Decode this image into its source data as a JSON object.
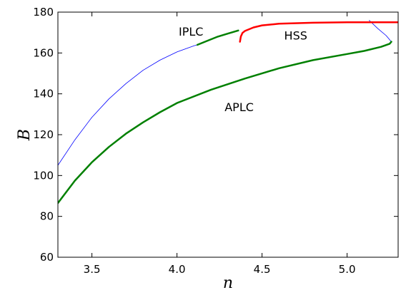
{
  "chart_data": {
    "type": "line",
    "title": "",
    "xlabel": "n",
    "ylabel": "B",
    "xlim": [
      3.3,
      5.3
    ],
    "ylim": [
      60,
      180
    ],
    "x_ticks": [
      3.5,
      4.0,
      4.5,
      5.0
    ],
    "x_tick_labels": [
      "3.5",
      "4.0",
      "4.5",
      "5.0"
    ],
    "y_ticks": [
      60,
      80,
      100,
      120,
      140,
      160,
      180
    ],
    "y_tick_labels": [
      "60",
      "80",
      "100",
      "120",
      "140",
      "160",
      "180"
    ],
    "grid": false,
    "series": [
      {
        "id": "blue-branch",
        "color": "#0000ff",
        "width": 0.8,
        "points": [
          [
            3.3,
            105
          ],
          [
            3.4,
            117.5
          ],
          [
            3.5,
            128.5
          ],
          [
            3.6,
            137.5
          ],
          [
            3.7,
            145
          ],
          [
            3.8,
            151.5
          ],
          [
            3.9,
            156.5
          ],
          [
            4.0,
            160.5
          ],
          [
            4.1,
            163.5
          ],
          [
            4.12,
            164
          ]
        ]
      },
      {
        "id": "blue-segment-right",
        "color": "#0000ff",
        "width": 0.8,
        "points": [
          [
            5.13,
            176
          ],
          [
            5.18,
            172
          ],
          [
            5.23,
            168.5
          ],
          [
            5.26,
            165.5
          ]
        ]
      },
      {
        "id": "iplc-stable",
        "color": "#008000",
        "width": 2.5,
        "points": [
          [
            4.12,
            164
          ],
          [
            4.18,
            166
          ],
          [
            4.24,
            168
          ],
          [
            4.3,
            169.5
          ],
          [
            4.36,
            171
          ]
        ]
      },
      {
        "id": "hss",
        "color": "#ff0000",
        "width": 2.5,
        "points": [
          [
            4.37,
            165.5
          ],
          [
            4.375,
            168
          ],
          [
            4.385,
            169.8
          ],
          [
            4.4,
            170.8
          ],
          [
            4.45,
            172.5
          ],
          [
            4.5,
            173.5
          ],
          [
            4.6,
            174.3
          ],
          [
            4.8,
            174.8
          ],
          [
            5.0,
            175
          ],
          [
            5.3,
            175
          ]
        ]
      },
      {
        "id": "aplc",
        "color": "#008000",
        "width": 2.5,
        "points": [
          [
            3.3,
            86.5
          ],
          [
            3.35,
            92
          ],
          [
            3.4,
            97.5
          ],
          [
            3.5,
            106.5
          ],
          [
            3.6,
            114
          ],
          [
            3.7,
            120.5
          ],
          [
            3.8,
            126
          ],
          [
            3.9,
            131
          ],
          [
            4.0,
            135.5
          ],
          [
            4.2,
            142
          ],
          [
            4.4,
            147.5
          ],
          [
            4.6,
            152.5
          ],
          [
            4.8,
            156.5
          ],
          [
            5.0,
            159.5
          ],
          [
            5.1,
            161
          ],
          [
            5.2,
            163
          ],
          [
            5.25,
            164.5
          ],
          [
            5.26,
            165.5
          ]
        ]
      }
    ],
    "annotations": [
      {
        "text": "IPLC",
        "x": 4.01,
        "y": 168.5
      },
      {
        "text": "HSS",
        "x": 4.63,
        "y": 166.5
      },
      {
        "text": "APLC",
        "x": 4.28,
        "y": 131.5
      }
    ]
  }
}
